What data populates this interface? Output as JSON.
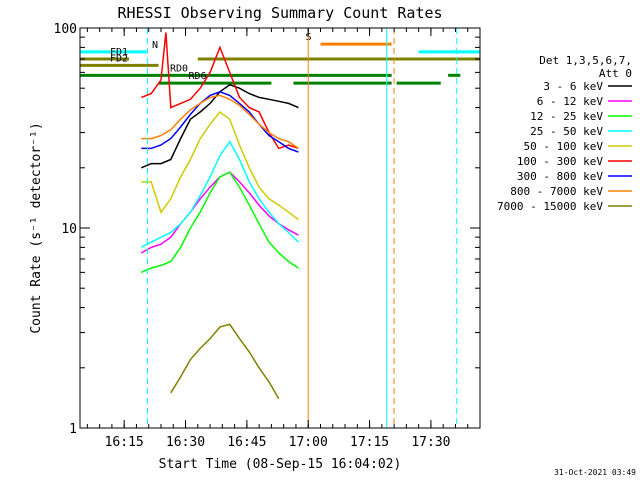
{
  "chart_data": {
    "type": "line",
    "title": "RHESSI Observing Summary Count Rates",
    "xlabel": "Start Time (08-Sep-15 16:04:02)",
    "ylabel": "Count Rate (s⁻¹ detector⁻¹)",
    "y_scale": "log",
    "ylim": [
      1,
      100
    ],
    "xlim_minutes": [
      16.07,
      17.7
    ],
    "x_ticks": [
      {
        "value": 16.25,
        "label": "16:15"
      },
      {
        "value": 16.5,
        "label": "16:30"
      },
      {
        "value": 16.75,
        "label": "16:45"
      },
      {
        "value": 17.0,
        "label": "17:00"
      },
      {
        "value": 17.25,
        "label": "17:15"
      },
      {
        "value": 17.5,
        "label": "17:30"
      }
    ],
    "y_ticks": [
      {
        "value": 1,
        "label": "1"
      },
      {
        "value": 10,
        "label": "10"
      },
      {
        "value": 100,
        "label": "100"
      }
    ],
    "legend": {
      "position": "right",
      "header": [
        "Det 1,3,5,6,7,",
        "Att 0"
      ],
      "entries": [
        {
          "label": "3 - 6 keV",
          "color": "#000000"
        },
        {
          "label": "6 - 12 keV",
          "color": "#ff00ff"
        },
        {
          "label": "12 - 25 keV",
          "color": "#00ff00"
        },
        {
          "label": "25 - 50 keV",
          "color": "#00ffff"
        },
        {
          "label": "50 - 100 keV",
          "color": "#cccc00"
        },
        {
          "label": "100 - 300 keV",
          "color": "#ff0000"
        },
        {
          "label": "300 - 800 keV",
          "color": "#0000ff"
        },
        {
          "label": "800 - 7000 keV",
          "color": "#ff8000"
        },
        {
          "label": "7000 - 15000 keV",
          "color": "#808000"
        }
      ]
    },
    "flag_bars": [
      {
        "label": "N",
        "color": "#00ffff",
        "y": 76,
        "segments": [
          [
            16.07,
            16.34
          ],
          [
            17.45,
            17.7
          ]
        ]
      },
      {
        "label": "S",
        "color": "#ff8000",
        "y": 83,
        "segments": [
          [
            17.05,
            17.34
          ]
        ]
      },
      {
        "label": "FD1",
        "color": "#808000",
        "y": 70,
        "segments": [
          [
            16.07,
            16.27
          ],
          [
            16.55,
            17.7
          ]
        ]
      },
      {
        "label": "FD2",
        "color": "#808000",
        "y": 65,
        "segments": [
          [
            16.07,
            16.39
          ]
        ]
      },
      {
        "label": "RD0",
        "color": "#008000",
        "y": 58,
        "segments": [
          [
            16.07,
            17.34
          ],
          [
            17.57,
            17.62
          ]
        ]
      },
      {
        "label": "RD6",
        "color": "#008000",
        "y": 53,
        "segments": [
          [
            16.39,
            16.85
          ],
          [
            16.94,
            17.34
          ],
          [
            17.36,
            17.54
          ]
        ]
      }
    ],
    "vertical_markers": [
      {
        "x": 16.345,
        "color": "#00ffff",
        "style": "dashed"
      },
      {
        "x": 17.0,
        "color": "#ff8000",
        "style": "solid"
      },
      {
        "x": 17.32,
        "color": "#00ffff",
        "style": "solid"
      },
      {
        "x": 17.35,
        "color": "#ff8000",
        "style": "dashed"
      },
      {
        "x": 17.605,
        "color": "#00ffff",
        "style": "dashed"
      }
    ],
    "series": [
      {
        "name": "3 - 6 keV",
        "color": "#000000",
        "x": [
          16.32,
          16.36,
          16.4,
          16.44,
          16.48,
          16.52,
          16.56,
          16.6,
          16.64,
          16.68,
          16.72,
          16.76,
          16.8,
          16.84,
          16.88,
          16.92,
          16.96
        ],
        "y": [
          20,
          21,
          21,
          22,
          28,
          35,
          38,
          42,
          48,
          52,
          50,
          47,
          45,
          44,
          43,
          42,
          40
        ]
      },
      {
        "name": "6 - 12 keV",
        "color": "#ff00ff",
        "x": [
          16.32,
          16.36,
          16.4,
          16.44,
          16.48,
          16.52,
          16.56,
          16.6,
          16.64,
          16.68,
          16.72,
          16.76,
          16.8,
          16.84,
          16.88,
          16.92,
          16.96
        ],
        "y": [
          7.5,
          8,
          8.3,
          9,
          10.5,
          12,
          14,
          16,
          18,
          19,
          17,
          15,
          13,
          11.5,
          10.5,
          9.8,
          9.2
        ]
      },
      {
        "name": "12 - 25 keV",
        "color": "#00ff00",
        "x": [
          16.32,
          16.36,
          16.4,
          16.44,
          16.48,
          16.52,
          16.56,
          16.6,
          16.64,
          16.68,
          16.72,
          16.76,
          16.8,
          16.84,
          16.88,
          16.92,
          16.96
        ],
        "y": [
          6,
          6.3,
          6.5,
          6.8,
          8,
          10,
          12,
          15,
          18,
          19,
          16,
          13,
          10.5,
          8.5,
          7.5,
          6.8,
          6.3
        ]
      },
      {
        "name": "25 - 50 keV",
        "color": "#00ffff",
        "x": [
          16.32,
          16.36,
          16.4,
          16.44,
          16.48,
          16.52,
          16.56,
          16.6,
          16.64,
          16.68,
          16.72,
          16.76,
          16.8,
          16.84,
          16.88,
          16.92,
          16.96
        ],
        "y": [
          8,
          8.5,
          9,
          9.5,
          10.5,
          12,
          14.5,
          18,
          23,
          27,
          22,
          17,
          14,
          12,
          10.5,
          9.5,
          8.5
        ]
      },
      {
        "name": "50 - 100 keV",
        "color": "#cccc00",
        "x": [
          16.32,
          16.36,
          16.4,
          16.44,
          16.48,
          16.52,
          16.56,
          16.6,
          16.64,
          16.68,
          16.72,
          16.76,
          16.8,
          16.84,
          16.88,
          16.92,
          16.96
        ],
        "y": [
          17,
          17,
          12,
          14,
          18,
          22,
          28,
          33,
          38,
          35,
          26,
          20,
          16,
          14,
          13,
          12,
          11
        ]
      },
      {
        "name": "100 - 300 keV",
        "color": "#ff0000",
        "x": [
          16.32,
          16.36,
          16.4,
          16.42,
          16.44,
          16.48,
          16.52,
          16.56,
          16.6,
          16.64,
          16.68,
          16.72,
          16.76,
          16.8,
          16.84,
          16.88,
          16.92,
          16.96
        ],
        "y": [
          45,
          47,
          55,
          95,
          40,
          42,
          44,
          50,
          60,
          80,
          60,
          45,
          40,
          38,
          30,
          25,
          26,
          25
        ]
      },
      {
        "name": "300 - 800 keV",
        "color": "#0000ff",
        "x": [
          16.32,
          16.36,
          16.4,
          16.44,
          16.48,
          16.52,
          16.56,
          16.6,
          16.64,
          16.68,
          16.72,
          16.76,
          16.8,
          16.84,
          16.88,
          16.92,
          16.96
        ],
        "y": [
          25,
          25,
          26,
          28,
          32,
          37,
          42,
          46,
          48,
          46,
          42,
          38,
          33,
          29,
          27,
          25,
          24
        ]
      },
      {
        "name": "800 - 7000 keV",
        "color": "#ff8000",
        "x": [
          16.32,
          16.36,
          16.4,
          16.44,
          16.48,
          16.52,
          16.56,
          16.6,
          16.64,
          16.68,
          16.72,
          16.76,
          16.8,
          16.84,
          16.88,
          16.92,
          16.96
        ],
        "y": [
          28,
          28,
          29,
          31,
          35,
          39,
          42,
          45,
          46,
          44,
          41,
          37,
          33,
          30,
          28,
          27,
          25
        ]
      },
      {
        "name": "7000 - 15000 keV",
        "color": "#808000",
        "x": [
          16.44,
          16.48,
          16.52,
          16.56,
          16.6,
          16.64,
          16.68,
          16.72,
          16.76,
          16.8,
          16.84,
          16.88
        ],
        "y": [
          1.5,
          1.8,
          2.2,
          2.5,
          2.8,
          3.2,
          3.3,
          2.8,
          2.4,
          2.0,
          1.7,
          1.4
        ]
      }
    ]
  },
  "footer_stamp": "31-Oct-2021 03:49"
}
